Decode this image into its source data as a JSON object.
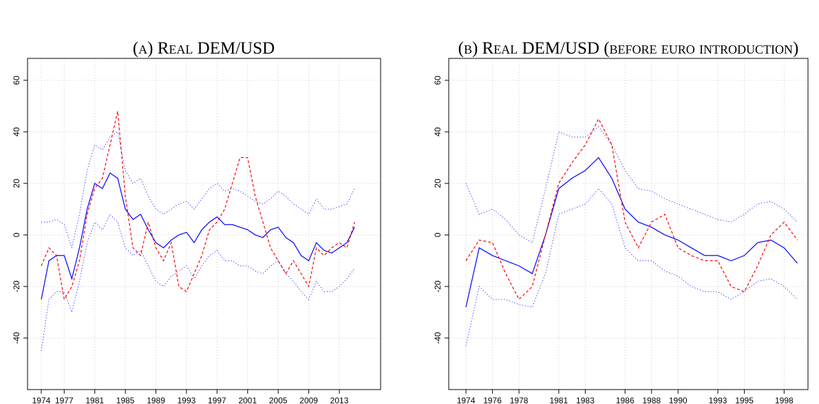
{
  "chart_data": [
    {
      "type": "line",
      "title": "(a) Real DEM/USD",
      "x": [
        1974,
        1975,
        1976,
        1977,
        1978,
        1979,
        1980,
        1981,
        1982,
        1983,
        1984,
        1985,
        1986,
        1987,
        1988,
        1989,
        1990,
        1991,
        1992,
        1993,
        1994,
        1995,
        1996,
        1997,
        1998,
        1999,
        2000,
        2001,
        2002,
        2003,
        2004,
        2005,
        2006,
        2007,
        2008,
        2009,
        2010,
        2011,
        2012,
        2013,
        2014,
        2015
      ],
      "series": [
        {
          "color": "#0000ff",
          "style": "solid",
          "values": [
            -25,
            -10,
            -8,
            -8,
            -17,
            -5,
            10,
            20,
            18,
            24,
            22,
            10,
            6,
            8,
            2,
            -3,
            -5,
            -2,
            0,
            1,
            -3,
            2,
            5,
            7,
            4,
            4,
            3,
            2,
            0,
            -1,
            2,
            3,
            -1,
            -3,
            -8,
            -10,
            -3,
            -6,
            -7,
            -5,
            -3,
            3
          ]
        },
        {
          "color": "#ff0000",
          "style": "dashed",
          "values": [
            -12,
            -5,
            -8,
            -25,
            -20,
            -10,
            8,
            18,
            22,
            35,
            48,
            15,
            -5,
            -8,
            5,
            -5,
            -10,
            -3,
            -20,
            -22,
            -15,
            -8,
            2,
            5,
            10,
            20,
            30,
            30,
            15,
            5,
            -5,
            -10,
            -15,
            -10,
            -15,
            -20,
            -5,
            -8,
            -5,
            -3,
            -5,
            5
          ]
        },
        {
          "color": "#0000ff",
          "style": "dotted",
          "values": [
            5,
            5,
            6,
            4,
            -5,
            8,
            25,
            35,
            33,
            38,
            40,
            25,
            20,
            22,
            15,
            10,
            8,
            10,
            12,
            13,
            10,
            14,
            18,
            20,
            17,
            18,
            17,
            15,
            13,
            12,
            14,
            17,
            15,
            12,
            10,
            8,
            14,
            10,
            10,
            11,
            12,
            18
          ]
        },
        {
          "color": "#0000ff",
          "style": "dotted",
          "values": [
            -45,
            -25,
            -22,
            -22,
            -30,
            -18,
            -3,
            5,
            2,
            8,
            5,
            -5,
            -8,
            -6,
            -12,
            -18,
            -20,
            -16,
            -14,
            -12,
            -17,
            -12,
            -8,
            -6,
            -10,
            -10,
            -12,
            -12,
            -14,
            -15,
            -12,
            -10,
            -15,
            -18,
            -22,
            -25,
            -18,
            -22,
            -22,
            -20,
            -17,
            -13
          ]
        }
      ],
      "xlim": [
        1972.2,
        2018.4
      ],
      "xticks": [
        1974,
        1977,
        1981,
        1985,
        1989,
        1993,
        1997,
        2001,
        2005,
        2009,
        2013
      ],
      "ylim": [
        -60,
        68.5
      ],
      "yticks": [
        -40,
        -20,
        0,
        20,
        40,
        60
      ],
      "grid": true
    },
    {
      "type": "line",
      "title": "(b) Real DEM/USD (before euro introduction)",
      "x": [
        1974,
        1975,
        1976,
        1977,
        1978,
        1979,
        1980,
        1981,
        1982,
        1983,
        1984,
        1985,
        1986,
        1987,
        1988,
        1989,
        1990,
        1991,
        1992,
        1993,
        1994,
        1995,
        1996,
        1997,
        1998,
        1999
      ],
      "series": [
        {
          "color": "#0000ff",
          "style": "solid",
          "values": [
            -28,
            -5,
            -8,
            -10,
            -12,
            -15,
            0,
            18,
            22,
            25,
            30,
            22,
            10,
            5,
            3,
            0,
            -2,
            -5,
            -8,
            -8,
            -10,
            -8,
            -3,
            -2,
            -5,
            -11
          ]
        },
        {
          "color": "#ff0000",
          "style": "dashed",
          "values": [
            -10,
            -2,
            -3,
            -15,
            -25,
            -20,
            0,
            20,
            28,
            35,
            45,
            35,
            5,
            -5,
            5,
            8,
            -5,
            -8,
            -10,
            -10,
            -20,
            -22,
            -12,
            0,
            5,
            -2
          ]
        },
        {
          "color": "#0000ff",
          "style": "dotted",
          "values": [
            20,
            8,
            10,
            6,
            0,
            -3,
            18,
            40,
            38,
            38,
            42,
            35,
            25,
            18,
            17,
            14,
            12,
            10,
            8,
            6,
            5,
            8,
            12,
            13,
            10,
            5
          ]
        },
        {
          "color": "#0000ff",
          "style": "dotted",
          "values": [
            -43,
            -20,
            -25,
            -25,
            -27,
            -28,
            -15,
            8,
            10,
            12,
            18,
            12,
            -5,
            -10,
            -10,
            -14,
            -16,
            -20,
            -22,
            -22,
            -25,
            -22,
            -18,
            -17,
            -20,
            -25
          ]
        }
      ],
      "xlim": [
        1972.7,
        1999.8
      ],
      "xticks": [
        1974,
        1976,
        1978,
        1981,
        1983,
        1986,
        1988,
        1990,
        1993,
        1995,
        1998
      ],
      "ylim": [
        -60,
        68.5
      ],
      "yticks": [
        -40,
        -20,
        0,
        20,
        40,
        60
      ],
      "grid": true
    }
  ]
}
